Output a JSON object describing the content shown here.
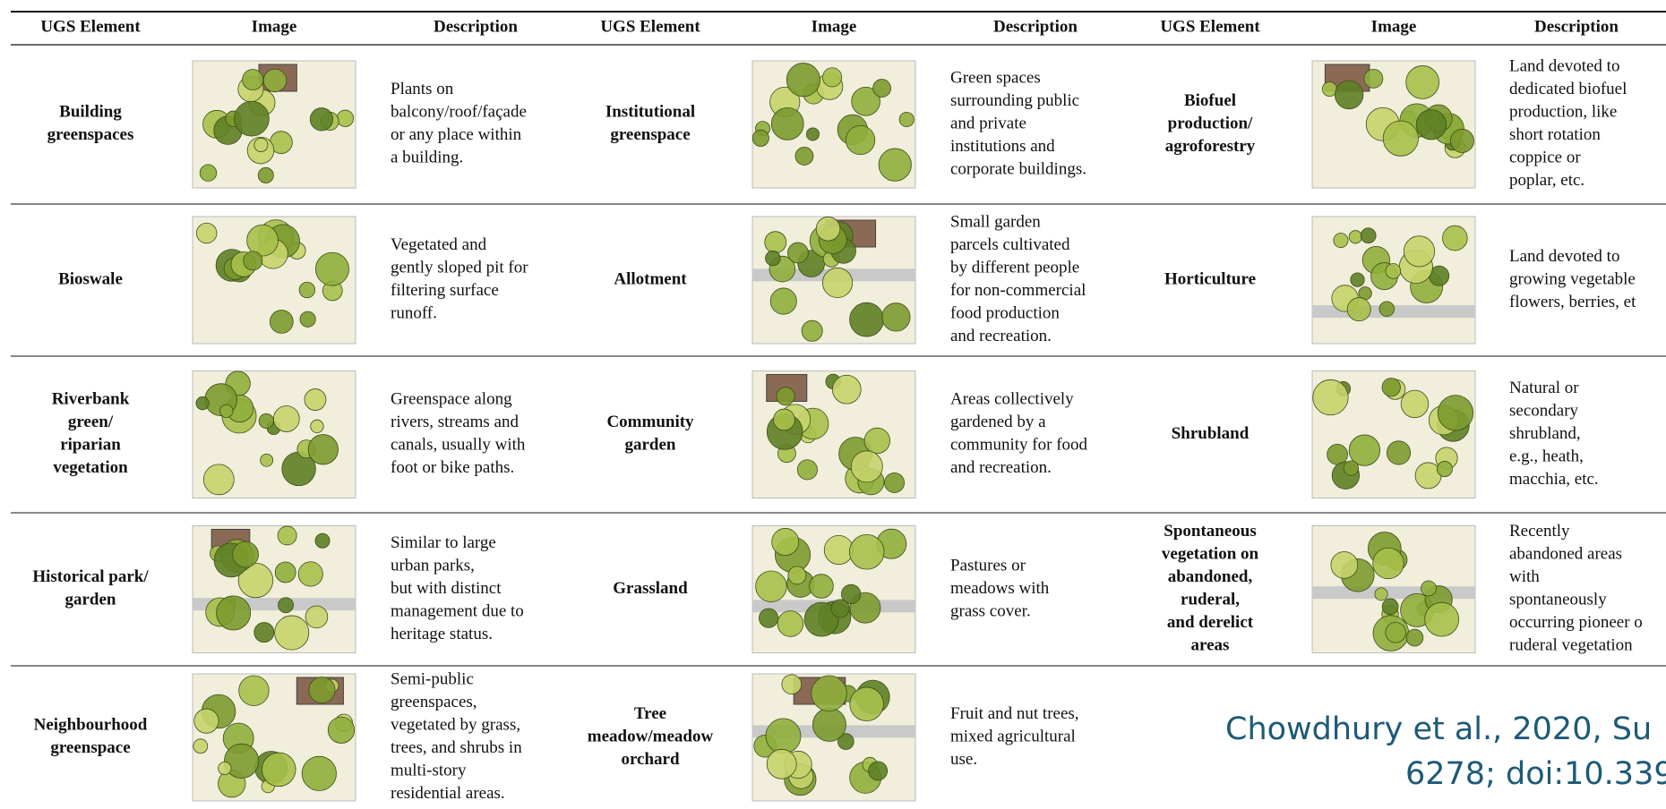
{
  "table": {
    "columns": [
      "UGS Element",
      "Image",
      "Description",
      "UGS Element",
      "Image",
      "Description",
      "UGS Element",
      "Image",
      "Description"
    ],
    "rows": [
      [
        {
          "element": [
            "Building",
            "greenspaces"
          ],
          "description": [
            "Plants on",
            "balcony/roof/façade",
            "or any place within",
            "a building."
          ]
        },
        {
          "element": [
            "Institutional",
            "greenspace"
          ],
          "description": [
            "Green spaces",
            "surrounding public",
            "and private",
            "institutions and",
            "corporate buildings."
          ]
        },
        {
          "element": [
            "Biofuel",
            "production/",
            "agroforestry"
          ],
          "description": [
            "Land devoted to",
            "dedicated biofuel",
            "production, like",
            "short rotation",
            "coppice or",
            "poplar, etc."
          ]
        }
      ],
      [
        {
          "element": [
            "Bioswale"
          ],
          "description": [
            "Vegetated and",
            "gently sloped pit for",
            "filtering surface",
            "runoff."
          ]
        },
        {
          "element": [
            "Allotment"
          ],
          "description": [
            "Small garden",
            "parcels cultivated",
            "by different people",
            "for non-commercial",
            "food production",
            "and recreation."
          ]
        },
        {
          "element": [
            "Horticulture"
          ],
          "description": [
            "Land devoted to",
            "growing vegetable",
            "flowers, berries, et"
          ]
        }
      ],
      [
        {
          "element": [
            "Riverbank",
            "green/",
            "riparian",
            "vegetation"
          ],
          "description": [
            "Greenspace along",
            "rivers, streams and",
            "canals, usually with",
            "foot or bike paths."
          ]
        },
        {
          "element": [
            "Community",
            "garden"
          ],
          "description": [
            "Areas collectively",
            "gardened by a",
            "community for food",
            "and recreation."
          ]
        },
        {
          "element": [
            "Shrubland"
          ],
          "description": [
            "Natural or",
            "secondary",
            "shrubland,",
            "e.g., heath,",
            "macchia, etc."
          ]
        }
      ],
      [
        {
          "element": [
            "Historical park/",
            "garden"
          ],
          "description": [
            "Similar to large",
            "urban parks,",
            "but with distinct",
            "management due to",
            "heritage status."
          ]
        },
        {
          "element": [
            "Grassland"
          ],
          "description": [
            "Pastures or",
            "meadows with",
            "grass cover."
          ]
        },
        {
          "element": [
            "Spontaneous",
            "vegetation on",
            "abandoned,",
            "ruderal,",
            "and derelict",
            "areas"
          ],
          "description": [
            "Recently",
            "abandoned areas",
            "with",
            "spontaneously",
            "occurring pioneer o",
            "ruderal vegetation"
          ]
        }
      ],
      [
        {
          "element": [
            "Neighbourhood",
            "greenspace"
          ],
          "description": [
            "Semi-public",
            "greenspaces,",
            "vegetated by grass,",
            "trees, and shrubs in",
            "multi-story",
            "residential areas."
          ]
        },
        {
          "element": [
            "Tree",
            "meadow/meadow",
            "orchard"
          ],
          "description": [
            "Fruit and nut trees,",
            "mixed agricultural",
            "use."
          ]
        }
      ]
    ]
  },
  "citation": [
    "Chowdhury et al., 2020, Su",
    "6278; doi:10.339"
  ]
}
